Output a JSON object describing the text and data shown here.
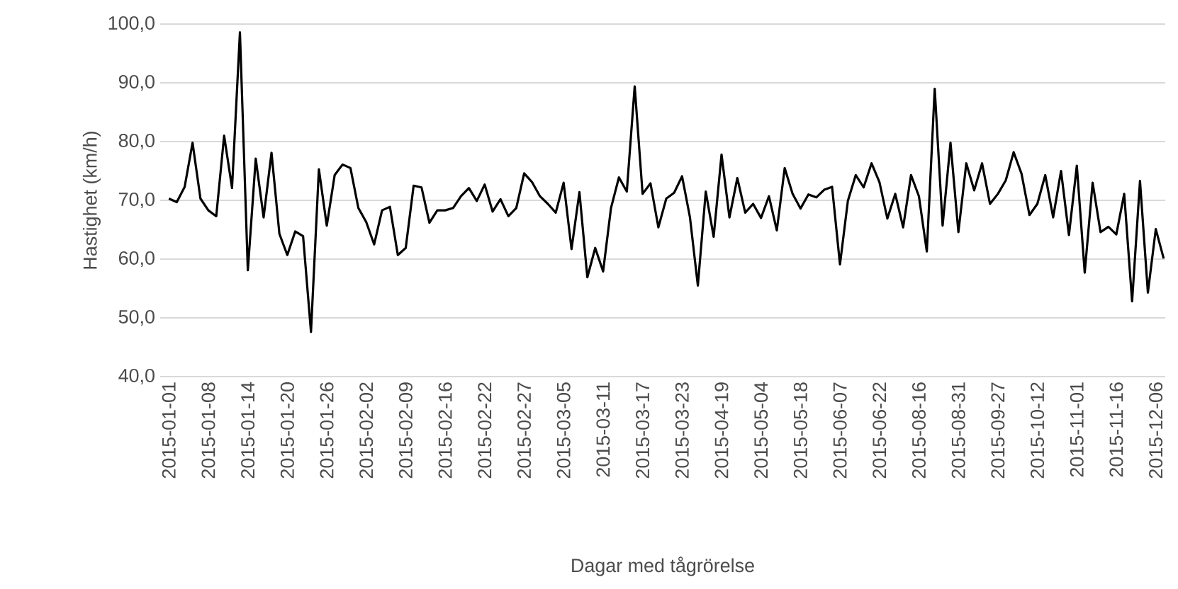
{
  "chart_data": {
    "type": "line",
    "xlabel": "Dagar med tågrörelse",
    "ylabel": "Hastighet (km/h)",
    "categories": [
      "2015-01-01",
      null,
      null,
      null,
      null,
      "2015-01-08",
      null,
      null,
      null,
      null,
      "2015-01-14",
      null,
      null,
      null,
      null,
      "2015-01-20",
      null,
      null,
      null,
      null,
      "2015-01-26",
      null,
      null,
      null,
      null,
      "2015-02-02",
      null,
      null,
      null,
      null,
      "2015-02-09",
      null,
      null,
      null,
      null,
      "2015-02-16",
      null,
      null,
      null,
      null,
      "2015-02-22",
      null,
      null,
      null,
      null,
      "2015-02-27",
      null,
      null,
      null,
      null,
      "2015-03-05",
      null,
      null,
      null,
      null,
      "2015-03-11",
      null,
      null,
      null,
      null,
      "2015-03-17",
      null,
      null,
      null,
      null,
      "2015-03-23",
      null,
      null,
      null,
      null,
      "2015-04-19",
      null,
      null,
      null,
      null,
      "2015-05-04",
      null,
      null,
      null,
      null,
      "2015-05-18",
      null,
      null,
      null,
      null,
      "2015-06-07",
      null,
      null,
      null,
      null,
      "2015-06-22",
      null,
      null,
      null,
      null,
      "2015-08-16",
      null,
      null,
      null,
      null,
      "2015-08-31",
      null,
      null,
      null,
      null,
      "2015-09-27",
      null,
      null,
      null,
      null,
      "2015-10-12",
      null,
      null,
      null,
      null,
      "2015-11-01",
      null,
      null,
      null,
      null,
      "2015-11-16",
      null,
      null,
      null,
      null,
      "2015-12-06",
      null
    ],
    "series": [
      {
        "color": "#000000",
        "values": [
          70.3,
          69.7,
          72.3,
          79.8,
          70.3,
          68.3,
          67.3,
          81.0,
          72.1,
          98.6,
          58.1,
          77.1,
          67.1,
          78.1,
          64.3,
          60.7,
          64.7,
          63.9,
          47.6,
          75.3,
          65.7,
          74.3,
          76.1,
          75.5,
          68.7,
          66.3,
          62.5,
          68.3,
          68.9,
          60.7,
          61.9,
          72.5,
          72.2,
          66.2,
          68.3,
          68.3,
          68.7,
          70.7,
          72.1,
          69.9,
          72.7,
          68.1,
          70.2,
          67.3,
          68.7,
          74.6,
          73.1,
          70.7,
          69.4,
          67.9,
          73.0,
          61.7,
          71.4,
          56.9,
          61.9,
          57.9,
          68.7,
          73.9,
          71.5,
          89.4,
          71.1,
          72.9,
          65.4,
          70.3,
          71.3,
          74.1,
          67.1,
          55.5,
          71.5,
          63.8,
          77.8,
          67.1,
          73.8,
          67.9,
          69.4,
          67.0,
          70.7,
          64.9,
          75.5,
          71.1,
          68.6,
          71.0,
          70.5,
          71.8,
          72.3,
          59.1,
          69.9,
          74.3,
          72.2,
          76.3,
          73.1,
          66.9,
          71.1,
          65.4,
          74.3,
          70.7,
          61.3,
          89.0,
          65.7,
          79.8,
          64.6,
          76.3,
          71.7,
          76.3,
          69.4,
          71.1,
          73.4,
          78.2,
          74.5,
          67.5,
          69.4,
          74.3,
          67.1,
          75.0,
          64.1,
          75.9,
          57.7,
          73.0,
          64.6,
          65.5,
          64.2,
          71.1,
          52.8,
          73.3,
          54.3,
          65.1,
          60.1
        ]
      }
    ],
    "ylim": [
      40,
      100
    ],
    "yticks": [
      {
        "value": 40,
        "label": "40,0"
      },
      {
        "value": 50,
        "label": "50,0"
      },
      {
        "value": 60,
        "label": "60,0"
      },
      {
        "value": 70,
        "label": "70,0"
      },
      {
        "value": 80,
        "label": "80,0"
      },
      {
        "value": 90,
        "label": "90,0"
      },
      {
        "value": 100,
        "label": "100,0"
      }
    ],
    "grid": "y",
    "marker": "none",
    "line_style": "solid"
  }
}
